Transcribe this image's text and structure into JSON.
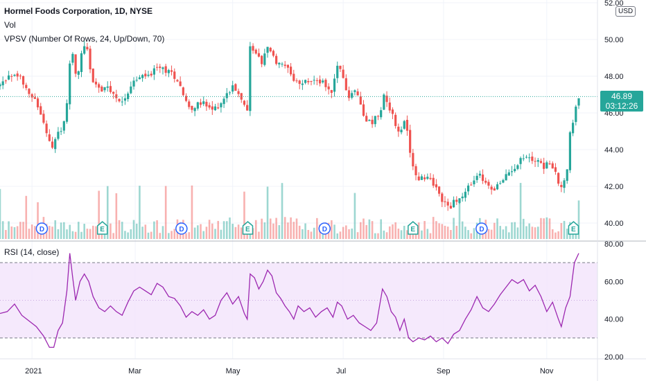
{
  "legend": {
    "main": "Hormel Foods Corporation, 1D, NYSE",
    "vol": "Vol",
    "vpsv": "VPSV (Number Of Rows, 24, Up/Down, 70)",
    "rsi": "RSI (14, close)"
  },
  "price_axis": {
    "currency": "USD",
    "last_price": "46.89",
    "countdown": "03:12:26"
  },
  "colors": {
    "up": "#26a69a",
    "down": "#ef5350",
    "rsi_line": "#9c27b0",
    "rsi_band": "#f3e5fc",
    "dividend_badge": "#2962ff",
    "earnings_badge": "#26a69a"
  },
  "chart_data": [
    {
      "type": "candlestick",
      "title": "Hormel Foods Corporation, 1D, NYSE",
      "ylim": [
        39.7,
        52
      ],
      "y_ticks": [
        "40.00",
        "42.00",
        "44.00",
        "46.00",
        "48.00",
        "50.00",
        "52.00"
      ],
      "x_ticks": [
        "2021",
        "Mar",
        "May",
        "Jul",
        "Sep",
        "Nov"
      ],
      "last_price": 46.89,
      "close_path": [
        {
          "t": 0,
          "v": 47.5
        },
        {
          "t": 5,
          "v": 47.9
        },
        {
          "t": 10,
          "v": 48.1
        },
        {
          "t": 15,
          "v": 47.8
        },
        {
          "t": 20,
          "v": 47.2
        },
        {
          "t": 25,
          "v": 46.5
        },
        {
          "t": 30,
          "v": 45.5
        },
        {
          "t": 33,
          "v": 44.6
        },
        {
          "t": 36,
          "v": 44.0
        },
        {
          "t": 38,
          "v": 44.6
        },
        {
          "t": 42,
          "v": 45.0
        },
        {
          "t": 45,
          "v": 45.6
        },
        {
          "t": 47,
          "v": 47.5
        },
        {
          "t": 49,
          "v": 50.0
        },
        {
          "t": 51,
          "v": 48.2
        },
        {
          "t": 53,
          "v": 47.8
        },
        {
          "t": 55,
          "v": 49.0
        },
        {
          "t": 57,
          "v": 49.6
        },
        {
          "t": 60,
          "v": 49.3
        },
        {
          "t": 63,
          "v": 47.9
        },
        {
          "t": 66,
          "v": 47.6
        },
        {
          "t": 70,
          "v": 47.2
        },
        {
          "t": 74,
          "v": 47.3
        },
        {
          "t": 78,
          "v": 47.0
        },
        {
          "t": 82,
          "v": 46.5
        },
        {
          "t": 86,
          "v": 46.9
        },
        {
          "t": 90,
          "v": 47.5
        },
        {
          "t": 95,
          "v": 47.9
        },
        {
          "t": 100,
          "v": 48.0
        },
        {
          "t": 105,
          "v": 48.2
        },
        {
          "t": 110,
          "v": 48.5
        },
        {
          "t": 115,
          "v": 48.3
        },
        {
          "t": 120,
          "v": 48.0
        },
        {
          "t": 124,
          "v": 47.6
        },
        {
          "t": 127,
          "v": 46.7
        },
        {
          "t": 131,
          "v": 46.3
        },
        {
          "t": 135,
          "v": 46.4
        },
        {
          "t": 140,
          "v": 46.5
        },
        {
          "t": 145,
          "v": 46.1
        },
        {
          "t": 150,
          "v": 46.4
        },
        {
          "t": 155,
          "v": 46.9
        },
        {
          "t": 160,
          "v": 47.5
        },
        {
          "t": 163,
          "v": 47.3
        },
        {
          "t": 166,
          "v": 46.9
        },
        {
          "t": 168,
          "v": 46.5
        },
        {
          "t": 170,
          "v": 46.0
        },
        {
          "t": 171,
          "v": 49.7
        },
        {
          "t": 173,
          "v": 49.6
        },
        {
          "t": 176,
          "v": 49.3
        },
        {
          "t": 180,
          "v": 48.6
        },
        {
          "t": 183,
          "v": 49.5
        },
        {
          "t": 187,
          "v": 49.4
        },
        {
          "t": 190,
          "v": 48.7
        },
        {
          "t": 194,
          "v": 48.6
        },
        {
          "t": 198,
          "v": 48.3
        },
        {
          "t": 202,
          "v": 47.7
        },
        {
          "t": 206,
          "v": 47.5
        },
        {
          "t": 210,
          "v": 47.7
        },
        {
          "t": 214,
          "v": 47.7
        },
        {
          "t": 218,
          "v": 47.8
        },
        {
          "t": 222,
          "v": 47.6
        },
        {
          "t": 225,
          "v": 47.5
        },
        {
          "t": 228,
          "v": 47.1
        },
        {
          "t": 230,
          "v": 47.9
        },
        {
          "t": 233,
          "v": 48.7
        },
        {
          "t": 236,
          "v": 47.8
        },
        {
          "t": 240,
          "v": 46.9
        },
        {
          "t": 244,
          "v": 47.2
        },
        {
          "t": 247,
          "v": 46.8
        },
        {
          "t": 250,
          "v": 46.0
        },
        {
          "t": 253,
          "v": 45.5
        },
        {
          "t": 256,
          "v": 45.5
        },
        {
          "t": 259,
          "v": 45.8
        },
        {
          "t": 262,
          "v": 46.3
        },
        {
          "t": 264,
          "v": 47.0
        },
        {
          "t": 267,
          "v": 46.5
        },
        {
          "t": 270,
          "v": 45.9
        },
        {
          "t": 273,
          "v": 45.1
        },
        {
          "t": 275,
          "v": 44.6
        },
        {
          "t": 277,
          "v": 45.4
        },
        {
          "t": 279,
          "v": 45.6
        },
        {
          "t": 281,
          "v": 44.6
        },
        {
          "t": 283,
          "v": 43.3
        },
        {
          "t": 286,
          "v": 42.5
        },
        {
          "t": 290,
          "v": 42.4
        },
        {
          "t": 294,
          "v": 42.6
        },
        {
          "t": 298,
          "v": 42.2
        },
        {
          "t": 302,
          "v": 41.5
        },
        {
          "t": 306,
          "v": 41.1
        },
        {
          "t": 310,
          "v": 40.9
        },
        {
          "t": 314,
          "v": 41.3
        },
        {
          "t": 318,
          "v": 41.4
        },
        {
          "t": 322,
          "v": 41.9
        },
        {
          "t": 326,
          "v": 42.3
        },
        {
          "t": 330,
          "v": 42.6
        },
        {
          "t": 334,
          "v": 42.1
        },
        {
          "t": 338,
          "v": 41.9
        },
        {
          "t": 342,
          "v": 42.0
        },
        {
          "t": 346,
          "v": 42.3
        },
        {
          "t": 350,
          "v": 42.8
        },
        {
          "t": 354,
          "v": 43.1
        },
        {
          "t": 358,
          "v": 43.5
        },
        {
          "t": 362,
          "v": 43.6
        },
        {
          "t": 366,
          "v": 43.4
        },
        {
          "t": 370,
          "v": 43.5
        },
        {
          "t": 374,
          "v": 43.1
        },
        {
          "t": 378,
          "v": 43.3
        },
        {
          "t": 381,
          "v": 42.8
        },
        {
          "t": 384,
          "v": 42.3
        },
        {
          "t": 386,
          "v": 41.9
        },
        {
          "t": 388,
          "v": 42.5
        },
        {
          "t": 390,
          "v": 43.0
        },
        {
          "t": 392,
          "v": 44.8
        },
        {
          "t": 394,
          "v": 45.6
        },
        {
          "t": 396,
          "v": 46.2
        },
        {
          "t": 398,
          "v": 46.89
        }
      ]
    },
    {
      "type": "bar",
      "title": "Vol",
      "series": [
        {
          "name": "Vol"
        }
      ]
    },
    {
      "type": "line",
      "title": "RSI (14, close)",
      "ylim": [
        20,
        80
      ],
      "y_ticks": [
        "20.00",
        "40.00",
        "60.00",
        "80.00"
      ],
      "band": [
        30,
        70
      ],
      "midline": 50,
      "values": [
        {
          "t": 0,
          "v": 43
        },
        {
          "t": 5,
          "v": 44
        },
        {
          "t": 10,
          "v": 48
        },
        {
          "t": 15,
          "v": 42
        },
        {
          "t": 20,
          "v": 39
        },
        {
          "t": 25,
          "v": 36
        },
        {
          "t": 30,
          "v": 31
        },
        {
          "t": 34,
          "v": 25
        },
        {
          "t": 37,
          "v": 25
        },
        {
          "t": 40,
          "v": 34
        },
        {
          "t": 43,
          "v": 38
        },
        {
          "t": 46,
          "v": 55
        },
        {
          "t": 48,
          "v": 75
        },
        {
          "t": 50,
          "v": 62
        },
        {
          "t": 52,
          "v": 50
        },
        {
          "t": 55,
          "v": 60
        },
        {
          "t": 58,
          "v": 64
        },
        {
          "t": 61,
          "v": 60
        },
        {
          "t": 64,
          "v": 52
        },
        {
          "t": 68,
          "v": 46
        },
        {
          "t": 72,
          "v": 44
        },
        {
          "t": 76,
          "v": 47
        },
        {
          "t": 80,
          "v": 44
        },
        {
          "t": 84,
          "v": 42
        },
        {
          "t": 88,
          "v": 49
        },
        {
          "t": 92,
          "v": 55
        },
        {
          "t": 96,
          "v": 57
        },
        {
          "t": 100,
          "v": 55
        },
        {
          "t": 104,
          "v": 53
        },
        {
          "t": 108,
          "v": 59
        },
        {
          "t": 112,
          "v": 57
        },
        {
          "t": 116,
          "v": 52
        },
        {
          "t": 120,
          "v": 51
        },
        {
          "t": 124,
          "v": 47
        },
        {
          "t": 128,
          "v": 41
        },
        {
          "t": 132,
          "v": 44
        },
        {
          "t": 136,
          "v": 42
        },
        {
          "t": 140,
          "v": 45
        },
        {
          "t": 144,
          "v": 40
        },
        {
          "t": 148,
          "v": 42
        },
        {
          "t": 152,
          "v": 50
        },
        {
          "t": 156,
          "v": 54
        },
        {
          "t": 160,
          "v": 48
        },
        {
          "t": 164,
          "v": 52
        },
        {
          "t": 168,
          "v": 43
        },
        {
          "t": 170,
          "v": 40
        },
        {
          "t": 172,
          "v": 64
        },
        {
          "t": 175,
          "v": 62
        },
        {
          "t": 178,
          "v": 56
        },
        {
          "t": 181,
          "v": 60
        },
        {
          "t": 184,
          "v": 66
        },
        {
          "t": 187,
          "v": 63
        },
        {
          "t": 190,
          "v": 54
        },
        {
          "t": 193,
          "v": 51
        },
        {
          "t": 196,
          "v": 47
        },
        {
          "t": 199,
          "v": 44
        },
        {
          "t": 202,
          "v": 40
        },
        {
          "t": 205,
          "v": 47
        },
        {
          "t": 209,
          "v": 44
        },
        {
          "t": 213,
          "v": 46
        },
        {
          "t": 217,
          "v": 41
        },
        {
          "t": 221,
          "v": 44
        },
        {
          "t": 225,
          "v": 46
        },
        {
          "t": 229,
          "v": 41
        },
        {
          "t": 232,
          "v": 49
        },
        {
          "t": 235,
          "v": 47
        },
        {
          "t": 239,
          "v": 40
        },
        {
          "t": 243,
          "v": 42
        },
        {
          "t": 247,
          "v": 38
        },
        {
          "t": 251,
          "v": 36
        },
        {
          "t": 255,
          "v": 34
        },
        {
          "t": 259,
          "v": 38
        },
        {
          "t": 263,
          "v": 56
        },
        {
          "t": 266,
          "v": 52
        },
        {
          "t": 269,
          "v": 44
        },
        {
          "t": 272,
          "v": 41
        },
        {
          "t": 275,
          "v": 34
        },
        {
          "t": 278,
          "v": 40
        },
        {
          "t": 281,
          "v": 30
        },
        {
          "t": 284,
          "v": 28
        },
        {
          "t": 288,
          "v": 30
        },
        {
          "t": 292,
          "v": 29
        },
        {
          "t": 296,
          "v": 31
        },
        {
          "t": 300,
          "v": 28
        },
        {
          "t": 304,
          "v": 30
        },
        {
          "t": 308,
          "v": 27
        },
        {
          "t": 312,
          "v": 32
        },
        {
          "t": 316,
          "v": 34
        },
        {
          "t": 320,
          "v": 40
        },
        {
          "t": 324,
          "v": 45
        },
        {
          "t": 328,
          "v": 52
        },
        {
          "t": 332,
          "v": 46
        },
        {
          "t": 336,
          "v": 44
        },
        {
          "t": 340,
          "v": 48
        },
        {
          "t": 344,
          "v": 53
        },
        {
          "t": 348,
          "v": 57
        },
        {
          "t": 352,
          "v": 61
        },
        {
          "t": 356,
          "v": 59
        },
        {
          "t": 360,
          "v": 61
        },
        {
          "t": 364,
          "v": 55
        },
        {
          "t": 368,
          "v": 58
        },
        {
          "t": 372,
          "v": 52
        },
        {
          "t": 376,
          "v": 44
        },
        {
          "t": 380,
          "v": 49
        },
        {
          "t": 384,
          "v": 40
        },
        {
          "t": 386,
          "v": 36
        },
        {
          "t": 389,
          "v": 46
        },
        {
          "t": 392,
          "v": 52
        },
        {
          "t": 395,
          "v": 70
        },
        {
          "t": 398,
          "v": 75
        }
      ]
    }
  ],
  "events": [
    {
      "type": "D",
      "t": 36
    },
    {
      "type": "E",
      "t": 88
    },
    {
      "type": "D",
      "t": 156
    },
    {
      "type": "E",
      "t": 213
    },
    {
      "type": "D",
      "t": 279
    },
    {
      "type": "E",
      "t": 355
    },
    {
      "type": "D",
      "t": 414
    },
    {
      "type": "E",
      "t": 493
    }
  ]
}
